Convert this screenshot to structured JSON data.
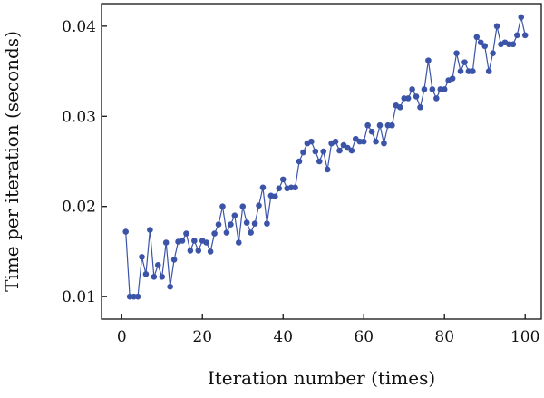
{
  "chart_data": {
    "type": "line",
    "title": "",
    "xlabel": "Iteration number (times)",
    "ylabel": "Time per iteration (seconds)",
    "xlim": [
      -5,
      104
    ],
    "ylim": [
      0.0075,
      0.0425
    ],
    "xticks": [
      0,
      20,
      40,
      60,
      80,
      100
    ],
    "yticks": [
      0.01,
      0.02,
      0.03,
      0.04
    ],
    "xtick_labels": [
      "0",
      "20",
      "40",
      "60",
      "80",
      "100"
    ],
    "ytick_labels": [
      "0.01",
      "0.02",
      "0.03",
      "0.04"
    ],
    "grid": false,
    "legend": "none",
    "marker": "circle",
    "color": "#3b54a8",
    "x": [
      1,
      2,
      3,
      4,
      5,
      6,
      7,
      8,
      9,
      10,
      11,
      12,
      13,
      14,
      15,
      16,
      17,
      18,
      19,
      20,
      21,
      22,
      23,
      24,
      25,
      26,
      27,
      28,
      29,
      30,
      31,
      32,
      33,
      34,
      35,
      36,
      37,
      38,
      39,
      40,
      41,
      42,
      43,
      44,
      45,
      46,
      47,
      48,
      49,
      50,
      51,
      52,
      53,
      54,
      55,
      56,
      57,
      58,
      59,
      60,
      61,
      62,
      63,
      64,
      65,
      66,
      67,
      68,
      69,
      70,
      71,
      72,
      73,
      74,
      75,
      76,
      77,
      78,
      79,
      80,
      81,
      82,
      83,
      84,
      85,
      86,
      87,
      88,
      89,
      90,
      91,
      92,
      93,
      94,
      95,
      96,
      97,
      98,
      99,
      100
    ],
    "y": [
      0.0172,
      0.01,
      0.01,
      0.01,
      0.0144,
      0.0125,
      0.0174,
      0.0122,
      0.0135,
      0.0122,
      0.016,
      0.0111,
      0.0141,
      0.0161,
      0.0162,
      0.017,
      0.0151,
      0.0162,
      0.0151,
      0.0162,
      0.016,
      0.015,
      0.017,
      0.018,
      0.02,
      0.0171,
      0.018,
      0.019,
      0.016,
      0.02,
      0.0182,
      0.0171,
      0.0181,
      0.0201,
      0.0221,
      0.0181,
      0.0212,
      0.0211,
      0.022,
      0.023,
      0.022,
      0.0221,
      0.0221,
      0.025,
      0.026,
      0.027,
      0.0272,
      0.0261,
      0.025,
      0.0261,
      0.0241,
      0.027,
      0.0272,
      0.0262,
      0.0268,
      0.0265,
      0.0262,
      0.0275,
      0.0272,
      0.0272,
      0.029,
      0.0283,
      0.0272,
      0.029,
      0.027,
      0.029,
      0.029,
      0.0312,
      0.031,
      0.032,
      0.032,
      0.033,
      0.0322,
      0.031,
      0.033,
      0.0362,
      0.033,
      0.032,
      0.033,
      0.033,
      0.034,
      0.0342,
      0.037,
      0.035,
      0.036,
      0.035,
      0.035,
      0.0388,
      0.0382,
      0.0378,
      0.035,
      0.037,
      0.04,
      0.038,
      0.0382,
      0.038,
      0.038,
      0.039,
      0.041,
      0.039
    ]
  }
}
